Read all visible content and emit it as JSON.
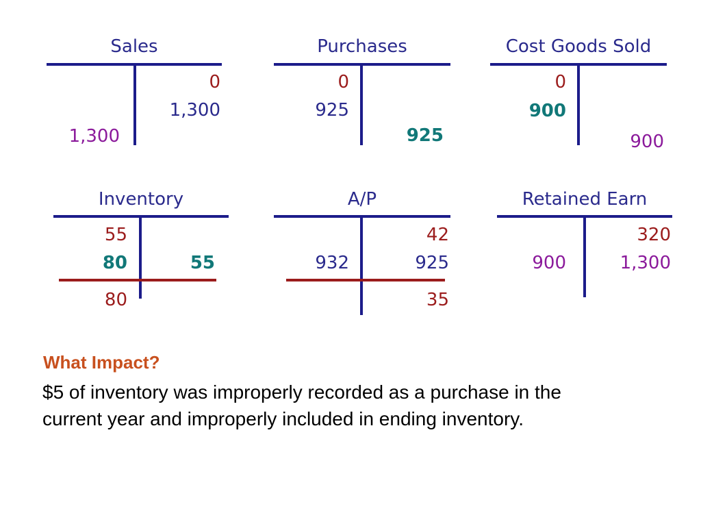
{
  "accounts": {
    "sales": {
      "title": "Sales",
      "right_1": "0",
      "right_2": "1,300",
      "left_1": "1,300"
    },
    "purchases": {
      "title": "Purchases",
      "left_1": "0",
      "left_2": "925",
      "right_1": "925"
    },
    "cogs": {
      "title": "Cost Goods Sold",
      "left_1": "0",
      "left_2": "900",
      "right_1": "900"
    },
    "inventory": {
      "title": "Inventory",
      "left_1": "55",
      "left_2": "80",
      "right_1": "55",
      "left_total": "80"
    },
    "ap": {
      "title": "A/P",
      "right_1": "42",
      "left_1": "932",
      "right_2": "925",
      "right_total": "35"
    },
    "retained": {
      "title": "Retained Earn",
      "right_1": "320",
      "left_1": "900",
      "right_2": "1,300"
    }
  },
  "note": {
    "heading": "What Impact?",
    "line1": "$5 of inventory was improperly recorded as a purchase in the",
    "line2": "current year and improperly included in ending inventory."
  }
}
